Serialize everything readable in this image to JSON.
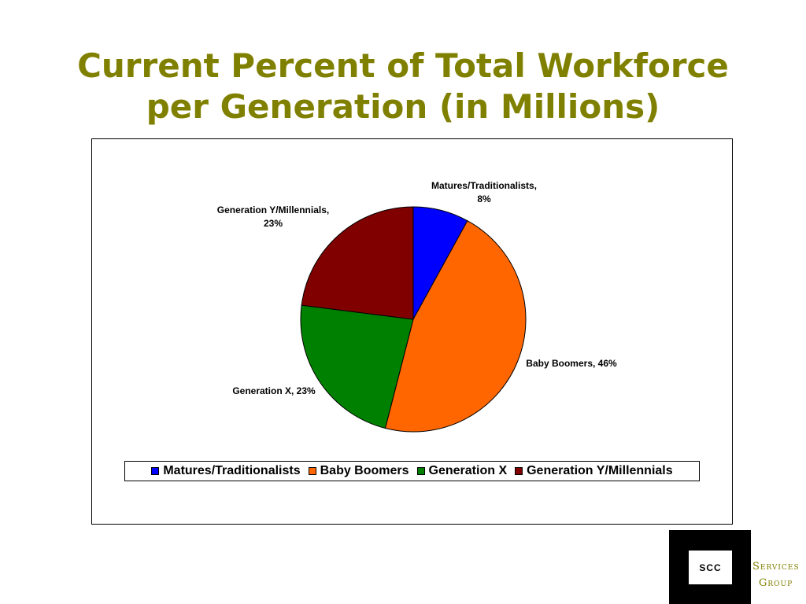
{
  "chart_data": {
    "type": "pie",
    "title": "Current Percent of Total Workforce per Generation (in Millions)",
    "categories": [
      "Matures/Traditionalists",
      "Baby Boomers",
      "Generation X",
      "Generation Y/Millennials"
    ],
    "values": [
      8,
      46,
      23,
      23
    ],
    "value_labels": [
      "Matures/Traditionalists, 8%",
      "Baby Boomers, 46%",
      "Generation X, 23%",
      "Generation Y/Millennials, 23%"
    ],
    "colors": [
      "#0000ff",
      "#ff6600",
      "#008000",
      "#800000"
    ],
    "legend": "bottom"
  },
  "logo": {
    "mark": "SCC",
    "line1": "Services",
    "line2": "Group"
  }
}
